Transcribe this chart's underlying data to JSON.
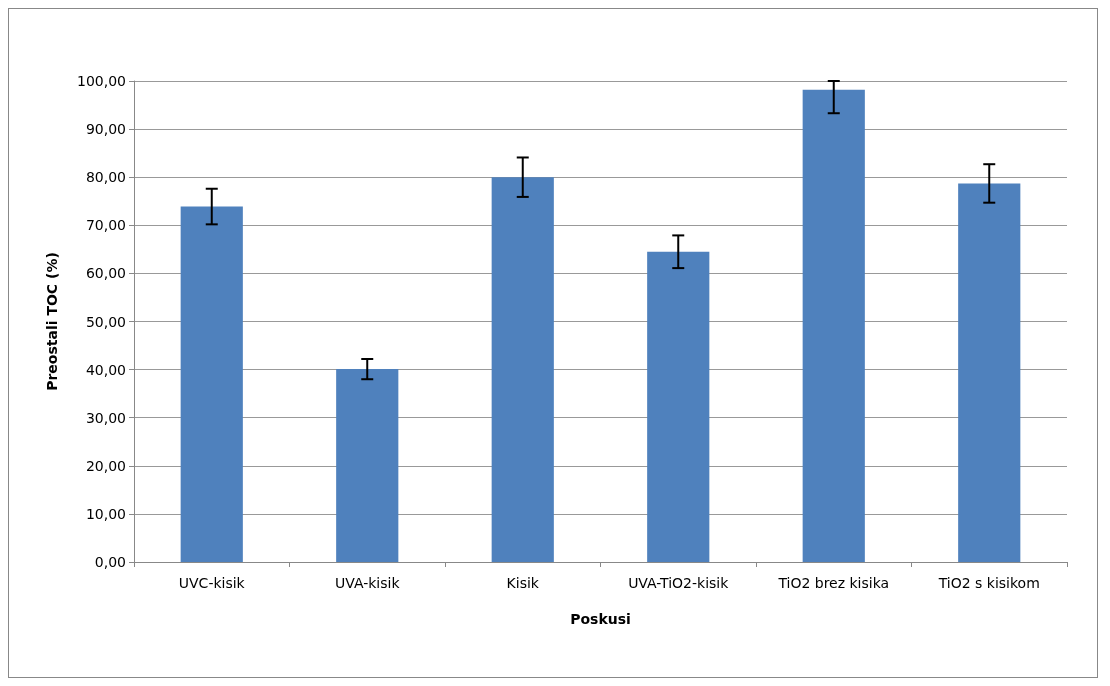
{
  "chart_data": {
    "type": "bar",
    "xlabel": "Poskusi",
    "ylabel": "Preostali TOC (%)",
    "categories": [
      "UVC-kisik",
      "UVA-kisik",
      "Kisik",
      "UVA-TiO2-kisik",
      "TiO2 brez kisika",
      "TiO2 s kisikom"
    ],
    "values": [
      73.9,
      40.1,
      80.0,
      64.5,
      98.2,
      78.7
    ],
    "errors": [
      3.7,
      2.1,
      4.1,
      3.4,
      [
        93.3,
        100
      ],
      4.0
    ],
    "color": "#4f81bd",
    "ylim": [
      0,
      100
    ],
    "yticks": [
      {
        "value": 0,
        "label": "0,00"
      },
      {
        "value": 10,
        "label": "10,00"
      },
      {
        "value": 20,
        "label": "20,00"
      },
      {
        "value": 30,
        "label": "30,00"
      },
      {
        "value": 40,
        "label": "40,00"
      },
      {
        "value": 50,
        "label": "50,00"
      },
      {
        "value": 60,
        "label": "60,00"
      },
      {
        "value": 70,
        "label": "70,00"
      },
      {
        "value": 80,
        "label": "80,00"
      },
      {
        "value": 90,
        "label": "90,00"
      },
      {
        "value": 100,
        "label": "100,00"
      }
    ],
    "grid": "y"
  }
}
